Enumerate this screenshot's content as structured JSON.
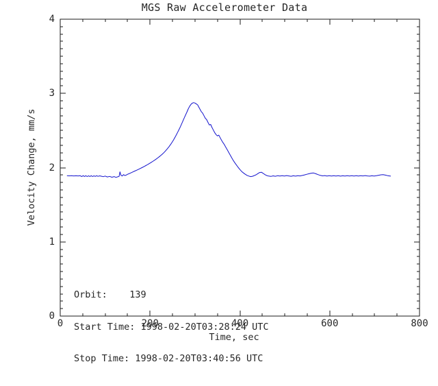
{
  "chart_data": {
    "type": "line",
    "title": "MGS Raw Accelerometer Data",
    "xlabel": "Time, sec",
    "ylabel": "Velocity Change, mm/s",
    "xlim": [
      0,
      800
    ],
    "ylim": [
      0,
      4
    ],
    "x_ticks": [
      0,
      200,
      400,
      600,
      800
    ],
    "y_ticks": [
      0,
      1,
      2,
      3,
      4
    ],
    "x_minor_divisions": 4,
    "y_minor_divisions": 10,
    "grid": false,
    "legend": null,
    "axis_color": "#1a1a1a",
    "line_color": "#1212cd",
    "annotations": [
      {
        "label": "orbit",
        "text": "Orbit:    139"
      },
      {
        "label": "start-time",
        "text": "Start Time: 1998-02-20T03:28:24 UTC"
      },
      {
        "label": "stop-time",
        "text": "Stop Time: 1998-02-20T03:40:56 UTC"
      }
    ],
    "series": [
      {
        "name": "velocity-change",
        "points": [
          [
            15,
            1.892
          ],
          [
            20,
            1.889
          ],
          [
            25,
            1.891
          ],
          [
            30,
            1.888
          ],
          [
            35,
            1.89
          ],
          [
            40,
            1.888
          ],
          [
            44,
            1.892
          ],
          [
            48,
            1.88
          ],
          [
            51,
            1.892
          ],
          [
            54,
            1.881
          ],
          [
            57,
            1.891
          ],
          [
            60,
            1.88
          ],
          [
            63,
            1.89
          ],
          [
            66,
            1.881
          ],
          [
            69,
            1.891
          ],
          [
            72,
            1.88
          ],
          [
            75,
            1.89
          ],
          [
            78,
            1.882
          ],
          [
            81,
            1.891
          ],
          [
            84,
            1.883
          ],
          [
            88,
            1.889
          ],
          [
            92,
            1.884
          ],
          [
            96,
            1.878
          ],
          [
            100,
            1.886
          ],
          [
            105,
            1.874
          ],
          [
            110,
            1.882
          ],
          [
            115,
            1.871
          ],
          [
            120,
            1.879
          ],
          [
            124,
            1.869
          ],
          [
            128,
            1.876
          ],
          [
            131,
            1.882
          ],
          [
            133,
            1.944
          ],
          [
            135,
            1.899
          ],
          [
            138,
            1.887
          ],
          [
            141,
            1.906
          ],
          [
            144,
            1.894
          ],
          [
            147,
            1.9
          ],
          [
            150,
            1.91
          ],
          [
            154,
            1.921
          ],
          [
            158,
            1.932
          ],
          [
            162,
            1.943
          ],
          [
            166,
            1.954
          ],
          [
            170,
            1.965
          ],
          [
            174,
            1.976
          ],
          [
            178,
            1.988
          ],
          [
            182,
            2.0
          ],
          [
            187,
            2.016
          ],
          [
            192,
            2.032
          ],
          [
            197,
            2.05
          ],
          [
            202,
            2.068
          ],
          [
            207,
            2.088
          ],
          [
            212,
            2.108
          ],
          [
            217,
            2.13
          ],
          [
            222,
            2.154
          ],
          [
            227,
            2.18
          ],
          [
            232,
            2.21
          ],
          [
            237,
            2.243
          ],
          [
            242,
            2.28
          ],
          [
            247,
            2.322
          ],
          [
            252,
            2.37
          ],
          [
            257,
            2.425
          ],
          [
            262,
            2.482
          ],
          [
            266,
            2.532
          ],
          [
            270,
            2.585
          ],
          [
            274,
            2.64
          ],
          [
            278,
            2.695
          ],
          [
            282,
            2.748
          ],
          [
            285,
            2.79
          ],
          [
            288,
            2.825
          ],
          [
            291,
            2.852
          ],
          [
            294,
            2.868
          ],
          [
            297,
            2.876
          ],
          [
            300,
            2.87
          ],
          [
            303,
            2.858
          ],
          [
            306,
            2.845
          ],
          [
            310,
            2.8
          ],
          [
            314,
            2.755
          ],
          [
            317,
            2.735
          ],
          [
            320,
            2.7
          ],
          [
            323,
            2.665
          ],
          [
            326,
            2.648
          ],
          [
            329,
            2.61
          ],
          [
            332,
            2.575
          ],
          [
            335,
            2.582
          ],
          [
            338,
            2.54
          ],
          [
            341,
            2.505
          ],
          [
            344,
            2.47
          ],
          [
            347,
            2.445
          ],
          [
            350,
            2.428
          ],
          [
            353,
            2.438
          ],
          [
            356,
            2.405
          ],
          [
            359,
            2.37
          ],
          [
            362,
            2.34
          ],
          [
            365,
            2.315
          ],
          [
            368,
            2.282
          ],
          [
            372,
            2.24
          ],
          [
            376,
            2.195
          ],
          [
            380,
            2.152
          ],
          [
            384,
            2.11
          ],
          [
            388,
            2.072
          ],
          [
            392,
            2.038
          ],
          [
            396,
            2.005
          ],
          [
            400,
            1.975
          ],
          [
            404,
            1.948
          ],
          [
            408,
            1.928
          ],
          [
            412,
            1.91
          ],
          [
            416,
            1.896
          ],
          [
            420,
            1.886
          ],
          [
            424,
            1.879
          ],
          [
            428,
            1.884
          ],
          [
            432,
            1.893
          ],
          [
            436,
            1.903
          ],
          [
            440,
            1.92
          ],
          [
            444,
            1.934
          ],
          [
            448,
            1.938
          ],
          [
            452,
            1.922
          ],
          [
            456,
            1.905
          ],
          [
            460,
            1.893
          ],
          [
            464,
            1.886
          ],
          [
            469,
            1.882
          ],
          [
            474,
            1.889
          ],
          [
            479,
            1.884
          ],
          [
            484,
            1.891
          ],
          [
            489,
            1.886
          ],
          [
            494,
            1.892
          ],
          [
            499,
            1.887
          ],
          [
            504,
            1.893
          ],
          [
            509,
            1.888
          ],
          [
            514,
            1.884
          ],
          [
            519,
            1.89
          ],
          [
            524,
            1.885
          ],
          [
            529,
            1.891
          ],
          [
            534,
            1.888
          ],
          [
            539,
            1.895
          ],
          [
            544,
            1.902
          ],
          [
            549,
            1.91
          ],
          [
            554,
            1.918
          ],
          [
            559,
            1.925
          ],
          [
            564,
            1.928
          ],
          [
            569,
            1.918
          ],
          [
            574,
            1.906
          ],
          [
            579,
            1.896
          ],
          [
            584,
            1.889
          ],
          [
            589,
            1.893
          ],
          [
            594,
            1.886
          ],
          [
            599,
            1.891
          ],
          [
            604,
            1.886
          ],
          [
            609,
            1.892
          ],
          [
            614,
            1.887
          ],
          [
            619,
            1.891
          ],
          [
            624,
            1.885
          ],
          [
            629,
            1.89
          ],
          [
            634,
            1.886
          ],
          [
            639,
            1.892
          ],
          [
            644,
            1.887
          ],
          [
            649,
            1.892
          ],
          [
            654,
            1.887
          ],
          [
            659,
            1.891
          ],
          [
            664,
            1.886
          ],
          [
            669,
            1.892
          ],
          [
            674,
            1.888
          ],
          [
            679,
            1.893
          ],
          [
            684,
            1.888
          ],
          [
            689,
            1.885
          ],
          [
            694,
            1.89
          ],
          [
            699,
            1.887
          ],
          [
            704,
            1.892
          ],
          [
            709,
            1.897
          ],
          [
            714,
            1.903
          ],
          [
            719,
            1.906
          ],
          [
            724,
            1.899
          ],
          [
            729,
            1.892
          ],
          [
            733,
            1.888
          ],
          [
            736,
            1.885
          ]
        ]
      }
    ]
  }
}
